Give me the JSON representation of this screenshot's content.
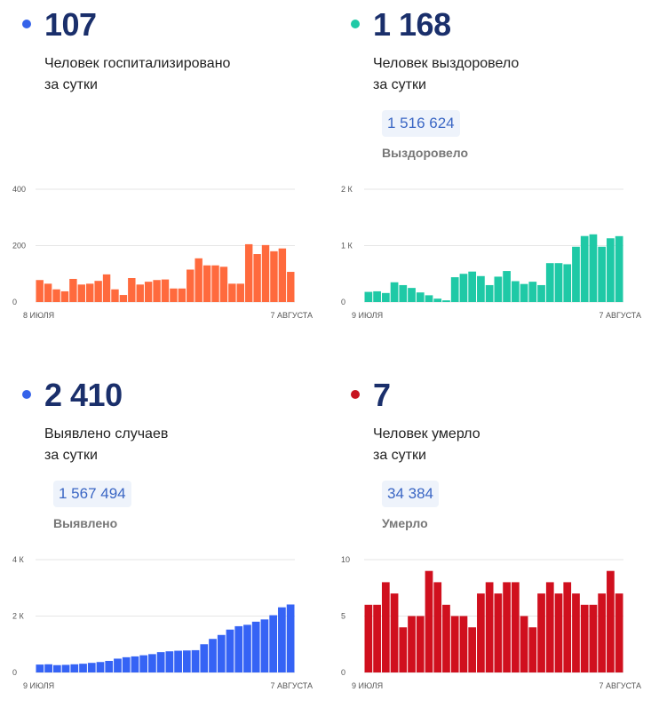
{
  "panels": [
    {
      "id": "hospitalized",
      "value": "107",
      "desc1": "Человек госпитализировано",
      "desc2": "за сутки",
      "total": "",
      "total_label": "",
      "color": "#ff6a3d",
      "dot_color": "#3563e9"
    },
    {
      "id": "recovered",
      "value": "1 168",
      "desc1": "Человек выздоровело",
      "desc2": "за сутки",
      "total": "1 516 624",
      "total_label": "Выздоровело",
      "color": "#1fc9a6",
      "dot_color": "#1fc9a6"
    },
    {
      "id": "cases",
      "value": "2 410",
      "desc1": "Выявлено случаев",
      "desc2": "за сутки",
      "total": "1 567 494",
      "total_label": "Выявлено",
      "color": "#3563f5",
      "dot_color": "#3563e9"
    },
    {
      "id": "deaths",
      "value": "7",
      "desc1": "Человек умерло",
      "desc2": "за сутки",
      "total": "34 384",
      "total_label": "Умерло",
      "color": "#d0101e",
      "dot_color": "#c7141f"
    }
  ],
  "chart_data": [
    {
      "type": "bar",
      "ylim": [
        0,
        400
      ],
      "yticks": [
        0,
        200,
        400
      ],
      "ytick_labels": [
        "0",
        "200",
        "400"
      ],
      "x_start_label": "8 ИЮЛЯ",
      "x_end_label": "7 АВГУСТА",
      "values": [
        78,
        65,
        45,
        38,
        82,
        62,
        65,
        75,
        98,
        45,
        25,
        85,
        62,
        72,
        78,
        80,
        48,
        48,
        115,
        155,
        130,
        130,
        125,
        65,
        65,
        205,
        170,
        202,
        180,
        190,
        107
      ]
    },
    {
      "type": "bar",
      "ylim": [
        0,
        2000
      ],
      "yticks": [
        0,
        1000,
        2000
      ],
      "ytick_labels": [
        "0",
        "1 К",
        "2 К"
      ],
      "x_start_label": "9 ИЮЛЯ",
      "x_end_label": "7 АВГУСТА",
      "values": [
        180,
        190,
        160,
        350,
        300,
        250,
        170,
        120,
        60,
        30,
        440,
        500,
        540,
        460,
        300,
        450,
        550,
        370,
        320,
        360,
        300,
        690,
        690,
        670,
        980,
        1170,
        1200,
        980,
        1130,
        1168
      ]
    },
    {
      "type": "bar",
      "ylim": [
        0,
        4000
      ],
      "yticks": [
        0,
        2000,
        4000
      ],
      "ytick_labels": [
        "0",
        "2 К",
        "4 К"
      ],
      "x_start_label": "9 ИЮЛЯ",
      "x_end_label": "7 АВГУСТА",
      "values": [
        280,
        290,
        260,
        270,
        290,
        310,
        340,
        370,
        410,
        490,
        540,
        570,
        610,
        650,
        720,
        750,
        770,
        780,
        790,
        1000,
        1190,
        1330,
        1520,
        1640,
        1690,
        1800,
        1880,
        2030,
        2310,
        2410
      ]
    },
    {
      "type": "bar",
      "ylim": [
        0,
        10
      ],
      "yticks": [
        0,
        5,
        10
      ],
      "ytick_labels": [
        "0",
        "5",
        "10"
      ],
      "x_start_label": "9 ИЮЛЯ",
      "x_end_label": "7 АВГУСТА",
      "values": [
        6,
        6,
        8,
        7,
        4,
        5,
        5,
        9,
        8,
        6,
        5,
        5,
        4,
        7,
        8,
        7,
        8,
        8,
        5,
        4,
        7,
        8,
        7,
        8,
        7,
        6,
        6,
        7,
        9,
        7
      ]
    }
  ]
}
